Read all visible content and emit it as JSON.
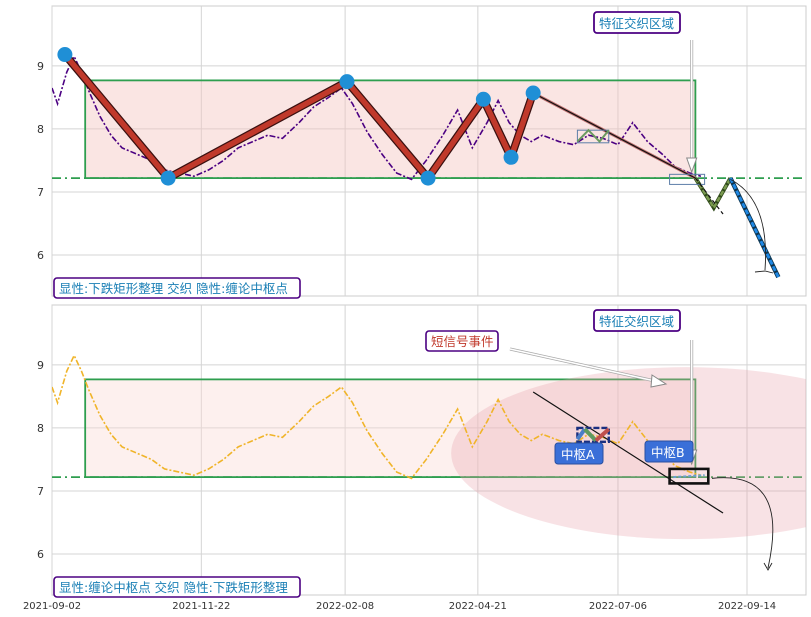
{
  "chart_data": [
    {
      "type": "line",
      "panel": "top",
      "xlim": [
        "2021-09-02",
        "2022-10-16"
      ],
      "ylim": [
        5.35,
        9.95
      ],
      "yticks": [
        6,
        7,
        8,
        9
      ],
      "grid": true,
      "label": "显性:下跌矩形整理 交织 隐性:缠论中枢点",
      "annotation": "特征交织区域",
      "series": [
        {
          "role": "price",
          "color": "#4b0082",
          "x": [
            "2021-09-02",
            "2021-09-05",
            "2021-09-10",
            "2021-09-14",
            "2021-09-18",
            "2021-09-22",
            "2021-09-28",
            "2021-10-04",
            "2021-10-10",
            "2021-10-18",
            "2021-10-26",
            "2021-11-02",
            "2021-11-10",
            "2021-11-18",
            "2021-11-26",
            "2021-12-04",
            "2021-12-12",
            "2021-12-20",
            "2021-12-28",
            "2022-01-05",
            "2022-01-14",
            "2022-01-22",
            "2022-01-30",
            "2022-02-06",
            "2022-02-12",
            "2022-02-20",
            "2022-02-28",
            "2022-03-08",
            "2022-03-16",
            "2022-03-24",
            "2022-04-02",
            "2022-04-10",
            "2022-04-18",
            "2022-04-26",
            "2022-05-02",
            "2022-05-08",
            "2022-05-14",
            "2022-05-20",
            "2022-05-26",
            "2022-06-04",
            "2022-06-12",
            "2022-06-20",
            "2022-06-28",
            "2022-07-06",
            "2022-07-14",
            "2022-07-22",
            "2022-07-30",
            "2022-08-06",
            "2022-08-14",
            "2022-08-20"
          ],
          "y": [
            8.65,
            8.4,
            8.9,
            9.15,
            8.9,
            8.6,
            8.2,
            7.9,
            7.7,
            7.6,
            7.5,
            7.35,
            7.3,
            7.25,
            7.35,
            7.5,
            7.7,
            7.8,
            7.9,
            7.85,
            8.1,
            8.35,
            8.5,
            8.65,
            8.4,
            7.95,
            7.6,
            7.3,
            7.2,
            7.5,
            7.9,
            8.3,
            7.7,
            8.1,
            8.45,
            8.1,
            7.9,
            7.8,
            7.9,
            7.8,
            7.75,
            7.9,
            7.85,
            7.75,
            8.1,
            7.8,
            7.6,
            7.4,
            7.3,
            7.25
          ]
        },
        {
          "role": "zigzag",
          "color": "#c0392b",
          "x": [
            "2021-09-09",
            "2021-11-04",
            "2022-02-09",
            "2022-03-25",
            "2022-04-24",
            "2022-05-09",
            "2022-05-21"
          ],
          "y": [
            9.18,
            7.22,
            8.75,
            7.22,
            8.47,
            7.55,
            8.57
          ]
        },
        {
          "role": "trend",
          "color": "#111111",
          "x": [
            "2022-05-21",
            "2022-08-17"
          ],
          "y": [
            8.57,
            7.22
          ]
        },
        {
          "role": "projection-green",
          "color": "#7a9a50",
          "x": [
            "2022-08-17",
            "2022-08-27",
            "2022-09-05"
          ],
          "y": [
            7.22,
            6.75,
            7.22
          ]
        },
        {
          "role": "projection-blue",
          "color": "#1e88e5",
          "x": [
            "2022-09-05",
            "2022-10-01"
          ],
          "y": [
            7.22,
            5.65
          ]
        }
      ],
      "box": {
        "x": [
          "2021-09-20",
          "2022-08-17"
        ],
        "y": [
          7.22,
          8.77
        ]
      },
      "hline": 7.22,
      "markers": {
        "x": [
          "2021-09-09",
          "2021-11-04",
          "2022-02-09",
          "2022-03-25",
          "2022-04-24",
          "2022-05-09",
          "2022-05-21"
        ],
        "y": [
          9.18,
          7.22,
          8.75,
          7.22,
          8.47,
          7.55,
          8.57
        ]
      }
    },
    {
      "type": "line",
      "panel": "bottom",
      "xlim": [
        "2021-09-02",
        "2022-10-16"
      ],
      "ylim": [
        5.35,
        9.95
      ],
      "yticks": [
        6,
        7,
        8,
        9
      ],
      "xticks": [
        "2021-09-02",
        "2021-11-22",
        "2022-02-08",
        "2022-04-21",
        "2022-07-06",
        "2022-09-14"
      ],
      "grid": true,
      "label": "显性:缠论中枢点 交织 隐性:下跌矩形整理",
      "annotation": "特征交织区域",
      "signal_label": "短信号事件",
      "pivot_a_label": "中枢A",
      "pivot_b_label": "中枢B",
      "series": [
        {
          "role": "price",
          "color": "#f0b429",
          "x": [
            "2021-09-02",
            "2021-09-05",
            "2021-09-10",
            "2021-09-14",
            "2021-09-18",
            "2021-09-22",
            "2021-09-28",
            "2021-10-04",
            "2021-10-10",
            "2021-10-18",
            "2021-10-26",
            "2021-11-02",
            "2021-11-10",
            "2021-11-18",
            "2021-11-26",
            "2021-12-04",
            "2021-12-12",
            "2021-12-20",
            "2021-12-28",
            "2022-01-05",
            "2022-01-14",
            "2022-01-22",
            "2022-01-30",
            "2022-02-06",
            "2022-02-12",
            "2022-02-20",
            "2022-02-28",
            "2022-03-08",
            "2022-03-16",
            "2022-03-24",
            "2022-04-02",
            "2022-04-10",
            "2022-04-18",
            "2022-04-26",
            "2022-05-02",
            "2022-05-08",
            "2022-05-14",
            "2022-05-20",
            "2022-05-26",
            "2022-06-04",
            "2022-06-12",
            "2022-06-20",
            "2022-06-28",
            "2022-07-06",
            "2022-07-14",
            "2022-07-22",
            "2022-07-30",
            "2022-08-06",
            "2022-08-14",
            "2022-08-20"
          ],
          "y": [
            8.65,
            8.4,
            8.9,
            9.15,
            8.9,
            8.6,
            8.2,
            7.9,
            7.7,
            7.6,
            7.5,
            7.35,
            7.3,
            7.25,
            7.35,
            7.5,
            7.7,
            7.8,
            7.9,
            7.85,
            8.1,
            8.35,
            8.5,
            8.65,
            8.4,
            7.95,
            7.6,
            7.3,
            7.2,
            7.5,
            7.9,
            8.3,
            7.7,
            8.1,
            8.45,
            8.1,
            7.9,
            7.8,
            7.9,
            7.8,
            7.75,
            7.9,
            7.85,
            7.75,
            8.1,
            7.8,
            7.6,
            7.4,
            7.3,
            7.25
          ]
        },
        {
          "role": "trend",
          "color": "#111111",
          "x": [
            "2022-05-21",
            "2022-09-01"
          ],
          "y": [
            8.57,
            6.65
          ]
        }
      ],
      "box": {
        "x": [
          "2021-09-20",
          "2022-08-17"
        ],
        "y": [
          7.22,
          8.77
        ]
      },
      "hline": 7.22
    }
  ]
}
